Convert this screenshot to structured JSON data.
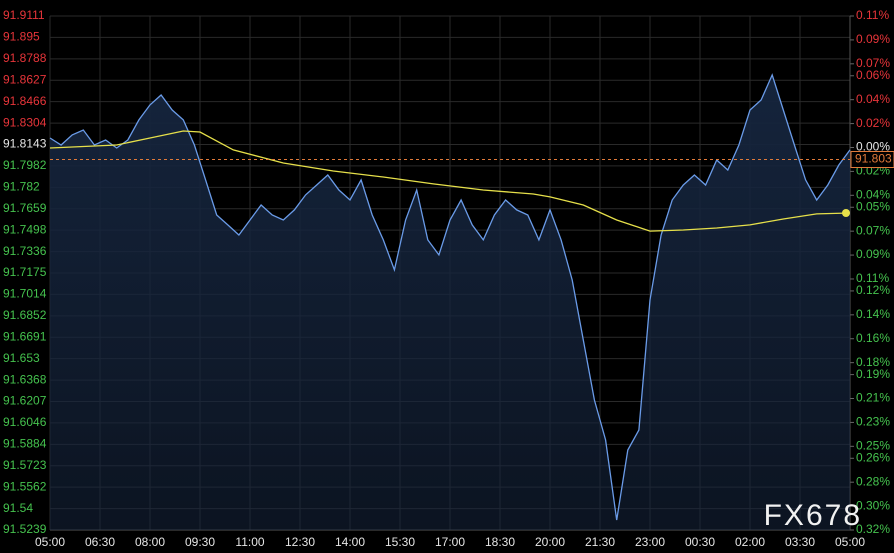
{
  "chart_data": {
    "type": "line",
    "ylim": [
      91.5239,
      91.9111
    ],
    "yticks": [
      91.9111,
      91.895,
      91.8788,
      91.8627,
      91.8466,
      91.8304,
      91.8143,
      91.7982,
      91.782,
      91.7659,
      91.7498,
      91.7336,
      91.7175,
      91.7014,
      91.6852,
      91.6691,
      91.653,
      91.6368,
      91.6207,
      91.6046,
      91.5884,
      91.5723,
      91.5562,
      91.54,
      91.5239
    ],
    "y2lim": [
      -0.32,
      0.11
    ],
    "y2ticks": [
      {
        "value": 0.11,
        "label": "0.11%"
      },
      {
        "value": 0.09,
        "label": "0.09%"
      },
      {
        "value": 0.07,
        "label": "0.07%"
      },
      {
        "value": 0.06,
        "label": "0.06%"
      },
      {
        "value": 0.04,
        "label": "0.04%"
      },
      {
        "value": 0.02,
        "label": "0.02%"
      },
      {
        "value": 0,
        "label": "0.00%"
      },
      {
        "value": -0.02,
        "label": "0.02%"
      },
      {
        "value": -0.04,
        "label": "0.04%"
      },
      {
        "value": -0.05,
        "label": "0.05%"
      },
      {
        "value": -0.07,
        "label": "0.07%"
      },
      {
        "value": -0.09,
        "label": "0.09%"
      },
      {
        "value": -0.11,
        "label": "0.11%"
      },
      {
        "value": -0.12,
        "label": "0.12%"
      },
      {
        "value": -0.14,
        "label": "0.14%"
      },
      {
        "value": -0.16,
        "label": "0.16%"
      },
      {
        "value": -0.18,
        "label": "0.18%"
      },
      {
        "value": -0.19,
        "label": "0.19%"
      },
      {
        "value": -0.21,
        "label": "0.21%"
      },
      {
        "value": -0.23,
        "label": "0.23%"
      },
      {
        "value": -0.25,
        "label": "0.25%"
      },
      {
        "value": -0.26,
        "label": "0.26%"
      },
      {
        "value": -0.28,
        "label": "0.28%"
      },
      {
        "value": -0.3,
        "label": "0.30%"
      },
      {
        "value": -0.32,
        "label": "0.32%"
      }
    ],
    "up_color": "#e8353a",
    "down_color": "#45c24e",
    "xticks": [
      "05:00",
      "06:30",
      "08:00",
      "09:30",
      "11:00",
      "12:30",
      "14:00",
      "15:30",
      "17:00",
      "18:30",
      "20:00",
      "21:30",
      "23:00",
      "00:30",
      "02:00",
      "03:30",
      "05:00"
    ],
    "grid": true,
    "reference": {
      "value": 91.803,
      "label": "91.803",
      "color": "#e07a3a"
    },
    "series": [
      {
        "color": "#6a9be8",
        "area_color": "#15243c",
        "x": [
          "05:00",
          "05:20",
          "05:40",
          "06:00",
          "06:20",
          "06:40",
          "07:00",
          "07:20",
          "07:40",
          "08:00",
          "08:20",
          "08:40",
          "09:00",
          "09:20",
          "09:40",
          "10:00",
          "10:20",
          "10:40",
          "11:00",
          "11:20",
          "11:40",
          "12:00",
          "12:20",
          "12:40",
          "13:00",
          "13:20",
          "13:40",
          "14:00",
          "14:20",
          "14:40",
          "15:00",
          "15:20",
          "15:40",
          "16:00",
          "16:20",
          "16:40",
          "17:00",
          "17:20",
          "17:40",
          "18:00",
          "18:20",
          "18:40",
          "19:00",
          "19:20",
          "19:40",
          "20:00",
          "20:20",
          "20:40",
          "21:00",
          "21:20",
          "21:40",
          "22:00",
          "22:20",
          "22:40",
          "23:00",
          "23:20",
          "23:40",
          "00:00",
          "00:20",
          "00:40",
          "01:00",
          "01:20",
          "01:40",
          "02:00",
          "02:20",
          "02:40",
          "03:00",
          "03:20",
          "03:40",
          "04:00",
          "04:20",
          "04:40",
          "05:00"
        ],
        "values": [
          91.8192,
          91.8139,
          91.8215,
          91.8252,
          91.8139,
          91.8177,
          91.8117,
          91.8177,
          91.8328,
          91.8441,
          91.8516,
          91.8403,
          91.8328,
          91.8139,
          91.7876,
          91.7612,
          91.7537,
          91.7461,
          91.7574,
          91.7687,
          91.7612,
          91.7574,
          91.765,
          91.7763,
          91.7838,
          91.7913,
          91.78,
          91.7725,
          91.7876,
          91.7612,
          91.7424,
          91.7198,
          91.7574,
          91.78,
          91.7424,
          91.7311,
          91.7574,
          91.7725,
          91.7537,
          91.7424,
          91.7612,
          91.7725,
          91.765,
          91.7612,
          91.7424,
          91.765,
          91.7424,
          91.7122,
          91.667,
          91.6218,
          91.5917,
          91.5314,
          91.5842,
          91.5992,
          91.6972,
          91.7461,
          91.7725,
          91.7838,
          91.7913,
          91.7838,
          91.8026,
          91.7951,
          91.8139,
          91.8403,
          91.8478,
          91.8667,
          91.8403,
          91.8139,
          91.7876,
          91.7725,
          91.7838,
          91.7989,
          91.8102
        ]
      },
      {
        "color": "#e6e04a",
        "x": [
          "05:00",
          "07:00",
          "08:00",
          "09:00",
          "09:30",
          "10:30",
          "12:00",
          "13:30",
          "15:00",
          "16:30",
          "18:00",
          "19:30",
          "20:00",
          "21:00",
          "22:00",
          "23:00",
          "00:00",
          "01:00",
          "02:00",
          "03:00",
          "04:00",
          "05:00"
        ],
        "values": [
          91.8117,
          91.8139,
          91.8192,
          91.8245,
          91.8237,
          91.8102,
          91.8004,
          91.7943,
          91.7898,
          91.7846,
          91.78,
          91.777,
          91.7748,
          91.7687,
          91.7574,
          91.7491,
          91.7499,
          91.7514,
          91.7537,
          91.7582,
          91.762,
          91.7627
        ]
      }
    ],
    "watermark": "FX678"
  }
}
